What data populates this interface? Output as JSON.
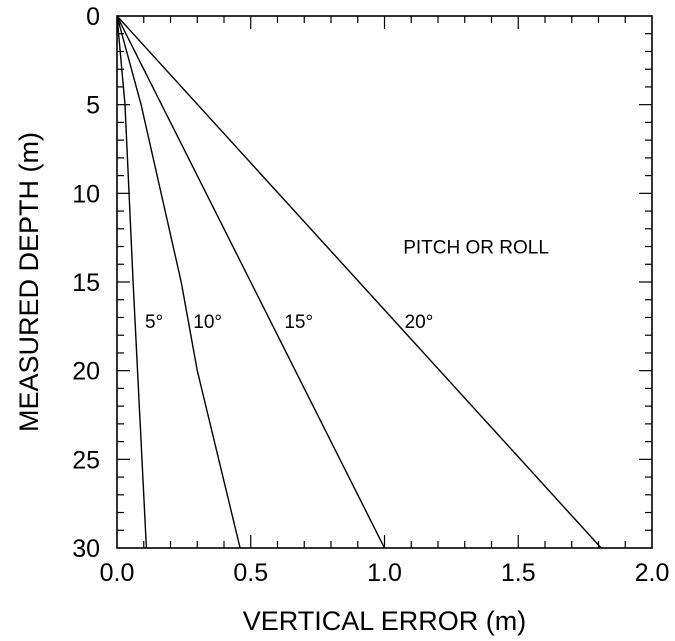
{
  "chart_data": {
    "type": "line",
    "xlabel": "VERTICAL ERROR (m)",
    "ylabel": "MEASURED DEPTH (m)",
    "xlim": [
      0,
      2
    ],
    "ylim": [
      0,
      30
    ],
    "y_inverted": true,
    "x_ticks": [
      "0.0",
      "0.5",
      "1.0",
      "1.5",
      "2.0"
    ],
    "y_ticks": [
      "0",
      "5",
      "10",
      "15",
      "20",
      "25",
      "30"
    ],
    "grid": false,
    "legend_title": "PITCH OR ROLL",
    "series": [
      {
        "name": "5°",
        "points": [
          [
            0,
            0
          ],
          [
            0.03,
            5
          ],
          [
            0.06,
            15
          ],
          [
            0.11,
            30
          ]
        ]
      },
      {
        "name": "10°",
        "points": [
          [
            0,
            0
          ],
          [
            0.09,
            5
          ],
          [
            0.24,
            15
          ],
          [
            0.3,
            20
          ],
          [
            0.46,
            30
          ]
        ]
      },
      {
        "name": "15°",
        "points": [
          [
            0,
            0
          ],
          [
            1.0,
            30
          ]
        ]
      },
      {
        "name": "20°",
        "points": [
          [
            0,
            0
          ],
          [
            1.81,
            30
          ]
        ]
      }
    ]
  }
}
